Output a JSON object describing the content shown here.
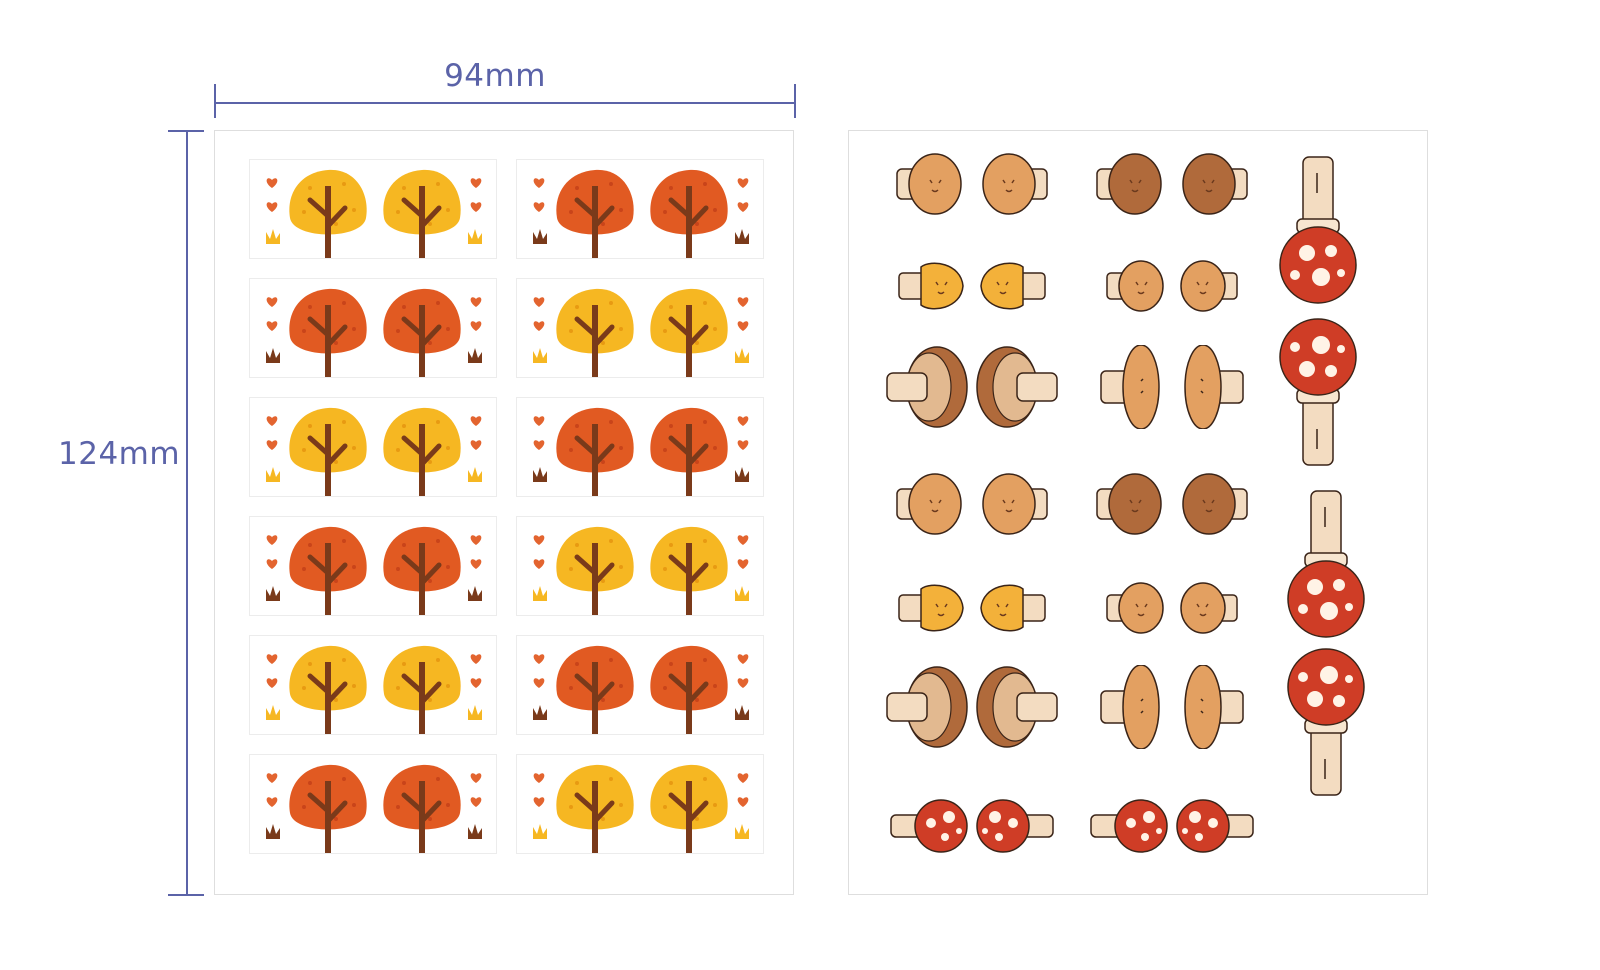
{
  "dimensions": {
    "width_label": "94mm",
    "height_label": "124mm"
  },
  "colors": {
    "dimension_line": "#5b63a8",
    "tree_yellow": "#f6b722",
    "tree_orange": "#e15a22",
    "trunk": "#7a3a1a",
    "heart": "#e3642f",
    "mushroom_tan": "#e3a061",
    "mushroom_brown": "#b06a3b",
    "mushroom_red": "#cf3d26",
    "stem": "#f3dcc1"
  },
  "tree_sheet": {
    "tiles": [
      {
        "color": "yellow"
      },
      {
        "color": "orange"
      },
      {
        "color": "orange"
      },
      {
        "color": "yellow"
      },
      {
        "color": "yellow"
      },
      {
        "color": "orange"
      },
      {
        "color": "orange"
      },
      {
        "color": "yellow"
      },
      {
        "color": "yellow"
      },
      {
        "color": "orange"
      },
      {
        "color": "orange"
      },
      {
        "color": "yellow"
      }
    ]
  },
  "mushroom_sheet": {
    "rows": [
      [
        "round-tan",
        "round-brown"
      ],
      [
        "cone-yellow",
        "small-tan"
      ],
      [
        "half-brown",
        "oval-tan"
      ],
      [
        "round-tan",
        "round-brown"
      ],
      [
        "cone-yellow",
        "small-tan"
      ],
      [
        "half-brown",
        "oval-tan"
      ],
      [
        "spotted-red",
        "spotted-red"
      ]
    ],
    "tall_pairs": 2
  }
}
